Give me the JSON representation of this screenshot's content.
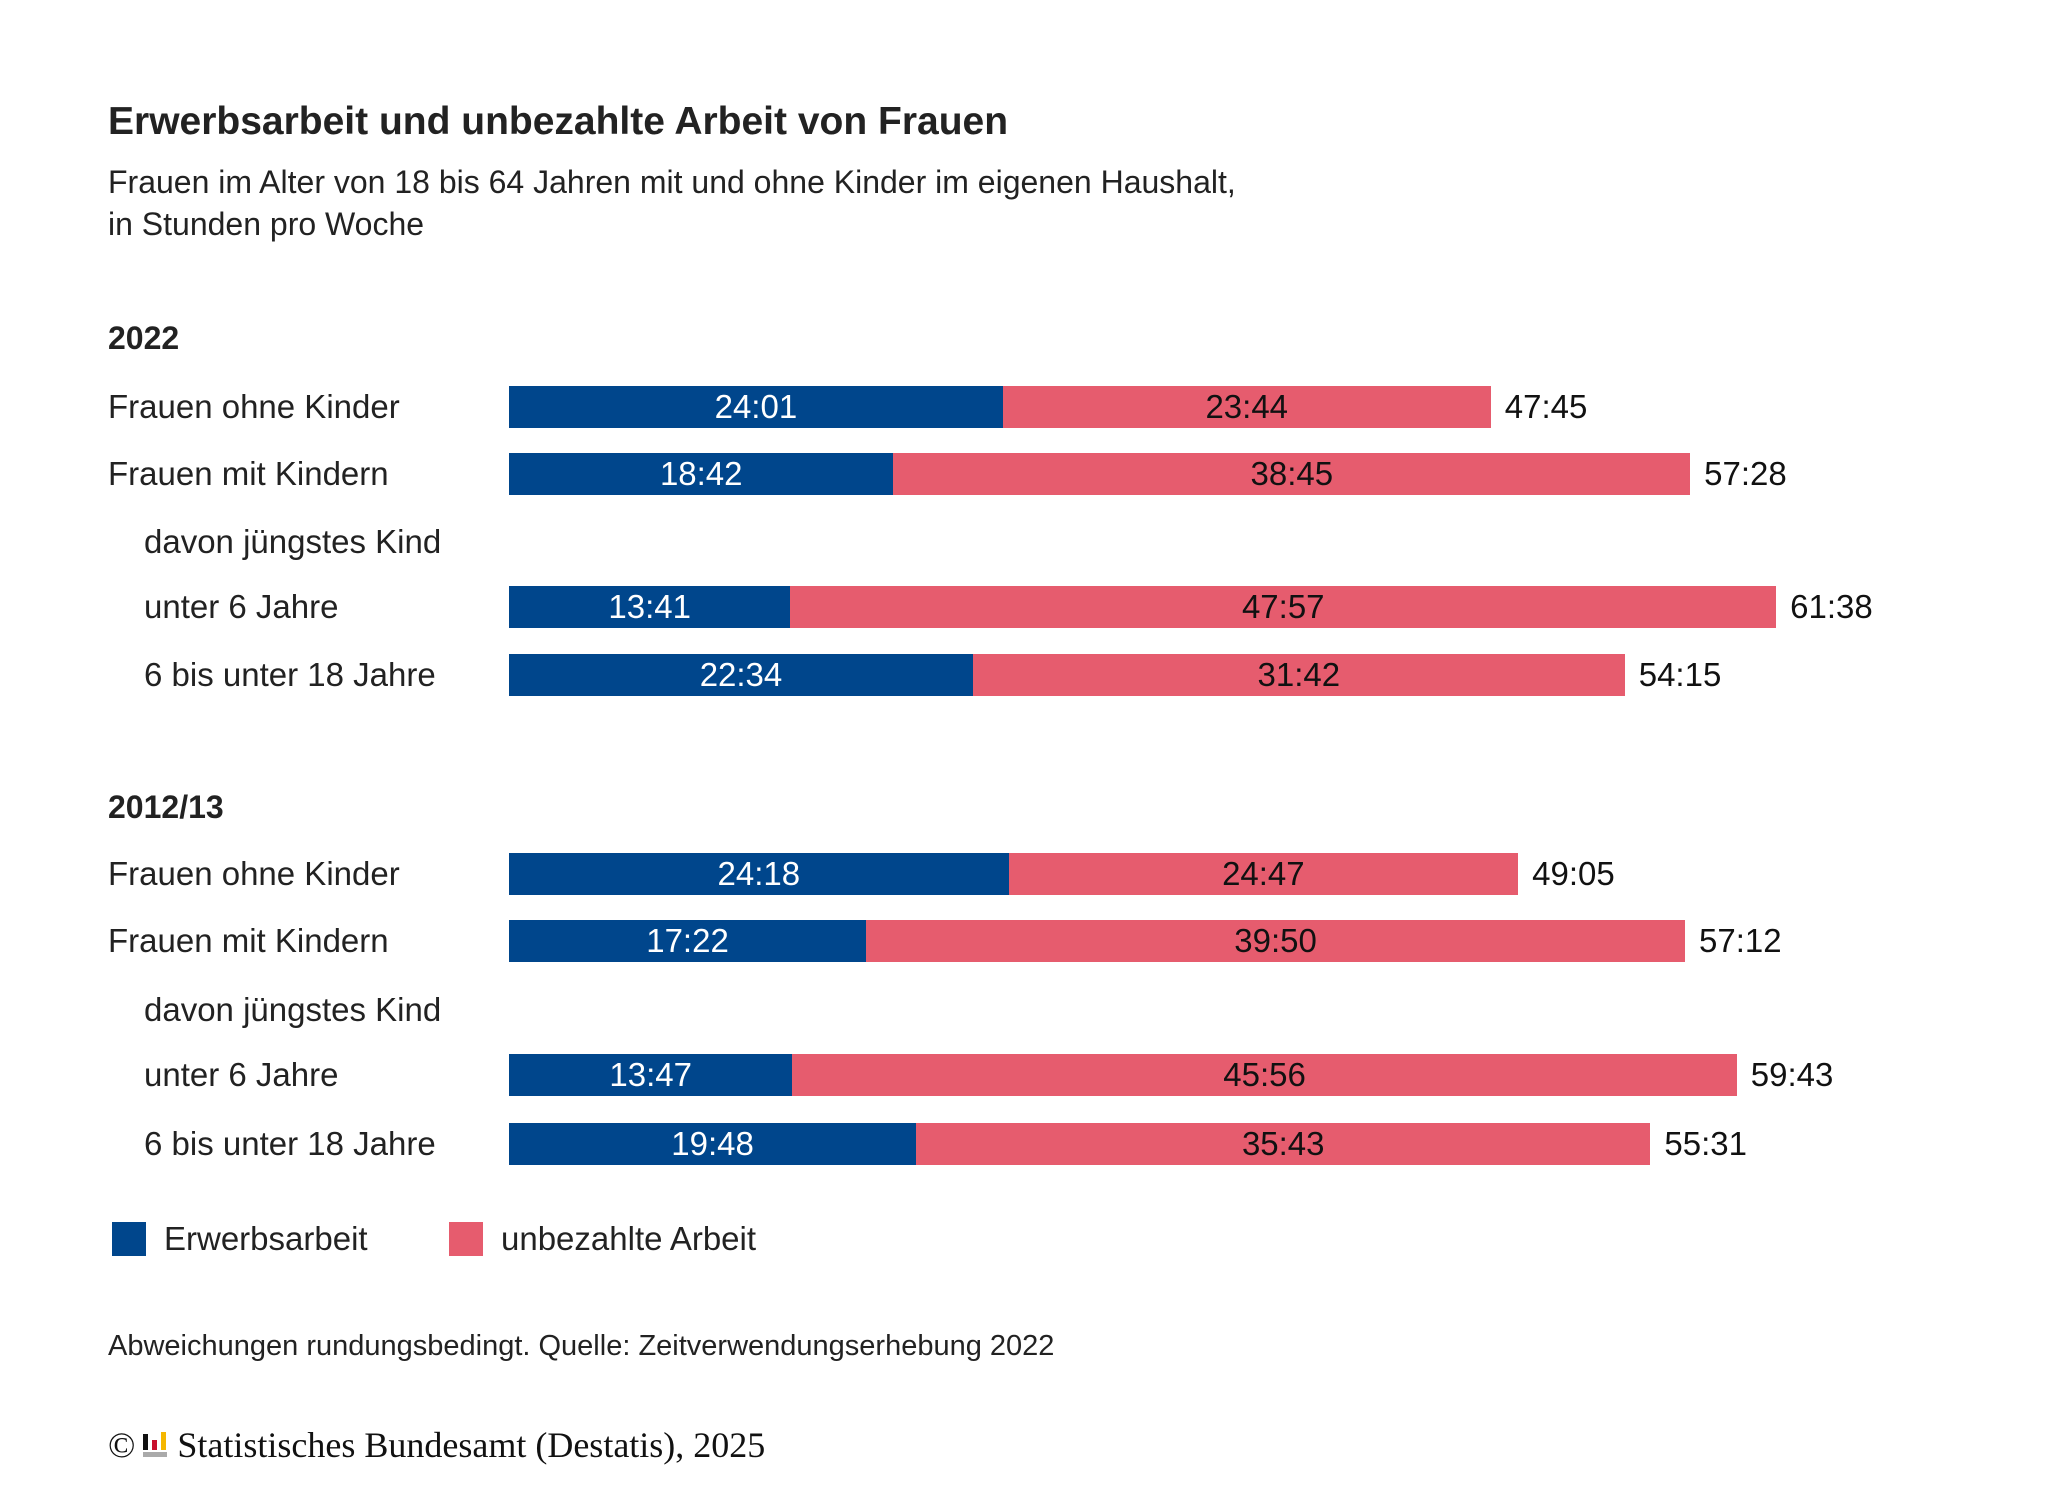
{
  "chart_data": {
    "type": "bar",
    "orientation": "horizontal-stacked",
    "title": "Erwerbsarbeit und unbezahlte Arbeit von Frauen",
    "subtitle": [
      "Frauen im Alter von 18 bis 64 Jahren mit und ohne Kinder im eigenen Haushalt,",
      "in Stunden pro Woche"
    ],
    "unit": "Stunden:Minuten pro Woche",
    "legend": [
      {
        "name": "Erwerbsarbeit",
        "color": "#00468c"
      },
      {
        "name": "unbezahlte Arbeit",
        "color": "#e65c6e"
      }
    ],
    "legend_placement": "bottom-left",
    "groups": [
      {
        "year": "2022",
        "rows": [
          {
            "label": "Frauen ohne Kinder",
            "indent": false,
            "erwerb": "24:01",
            "unbezahlt": "23:44",
            "total": "47:45"
          },
          {
            "label": "Frauen mit Kindern",
            "indent": false,
            "erwerb": "18:42",
            "unbezahlt": "38:45",
            "total": "57:28"
          },
          {
            "label": "davon jüngstes Kind",
            "indent": true
          },
          {
            "label": "unter 6 Jahre",
            "indent": true,
            "erwerb": "13:41",
            "unbezahlt": "47:57",
            "total": "61:38"
          },
          {
            "label": "6 bis unter 18 Jahre",
            "indent": true,
            "erwerb": "22:34",
            "unbezahlt": "31:42",
            "total": "54:15"
          }
        ]
      },
      {
        "year": "2012/13",
        "rows": [
          {
            "label": "Frauen ohne Kinder",
            "indent": false,
            "erwerb": "24:18",
            "unbezahlt": "24:47",
            "total": "49:05"
          },
          {
            "label": "Frauen mit Kindern",
            "indent": false,
            "erwerb": "17:22",
            "unbezahlt": "39:50",
            "total": "57:12"
          },
          {
            "label": "davon jüngstes Kind",
            "indent": true
          },
          {
            "label": "unter 6 Jahre",
            "indent": true,
            "erwerb": "13:47",
            "unbezahlt": "45:56",
            "total": "59:43"
          },
          {
            "label": "6 bis unter 18 Jahre",
            "indent": true,
            "erwerb": "19:48",
            "unbezahlt": "35:43",
            "total": "55:31"
          }
        ]
      }
    ]
  },
  "footnote": "Abweichungen rundungsbedingt. Quelle: Zeitverwendungserhebung 2022",
  "copyright": "© Statistisches Bundesamt (Destatis), 2025"
}
